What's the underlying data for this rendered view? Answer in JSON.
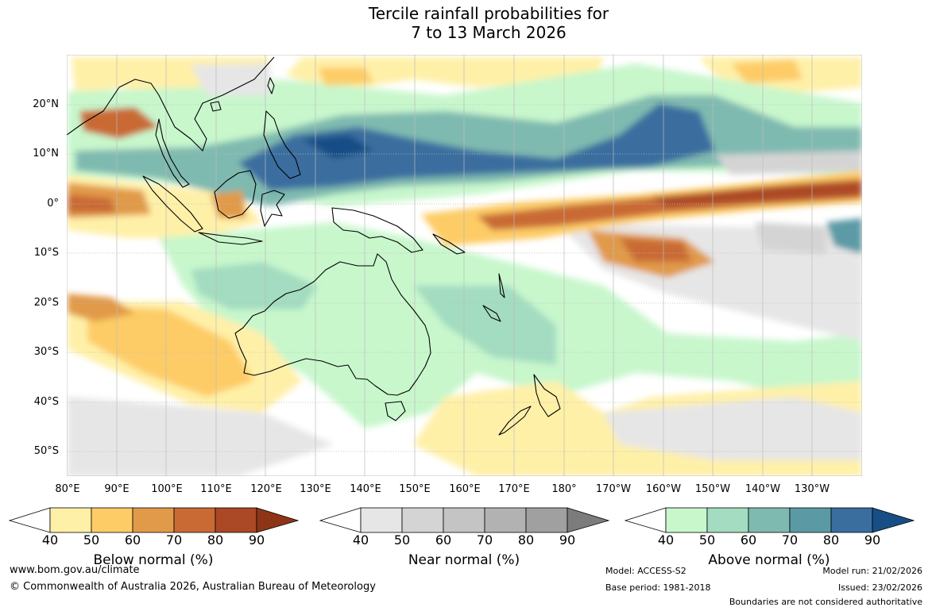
{
  "title": {
    "line1": "Tercile rainfall probabilities for",
    "line2": "7 to 13 March 2026"
  },
  "map": {
    "lat_labels": [
      "20°N",
      "10°N",
      "0°",
      "10°S",
      "20°S",
      "30°S",
      "40°S",
      "50°S"
    ],
    "lon_labels": [
      "80°E",
      "90°E",
      "100°E",
      "110°E",
      "120°E",
      "130°E",
      "140°E",
      "150°E",
      "160°E",
      "170°E",
      "180°",
      "170°W",
      "160°W",
      "150°W",
      "140°W",
      "130°W"
    ],
    "extent": {
      "lon_min": 80,
      "lon_max": 240,
      "lat_min": -55,
      "lat_max": 30
    }
  },
  "legends": [
    {
      "name": "Below normal (%)",
      "ticks": [
        "40",
        "50",
        "60",
        "70",
        "80",
        "90"
      ],
      "colors": [
        "#fff0a8",
        "#fdcc66",
        "#e19a4a",
        "#c96a35",
        "#ab4825",
        "#8f3517"
      ]
    },
    {
      "name": "Near normal (%)",
      "ticks": [
        "40",
        "50",
        "60",
        "70",
        "80",
        "90"
      ],
      "colors": [
        "#e6e6e6",
        "#d4d4d4",
        "#c4c4c4",
        "#b2b2b2",
        "#a0a0a0",
        "#7c7c7c"
      ]
    },
    {
      "name": "Above normal (%)",
      "ticks": [
        "40",
        "50",
        "60",
        "70",
        "80",
        "90"
      ],
      "colors": [
        "#c8f7cc",
        "#a3dcc0",
        "#7fbab0",
        "#5b9aa5",
        "#3a6e9f",
        "#184e86"
      ]
    }
  ],
  "footer": {
    "website": "www.bom.gov.au/climate",
    "copyright": "© Commonwealth of Australia 2026, Australian Bureau of Meteorology",
    "model": "Model: ACCESS-S2",
    "base_period": "Base period: 1981-2018",
    "model_run": "Model run: 21/02/2026",
    "issued": "Issued: 23/02/2026",
    "disclaimer": "Boundaries are not considered authoritative"
  }
}
